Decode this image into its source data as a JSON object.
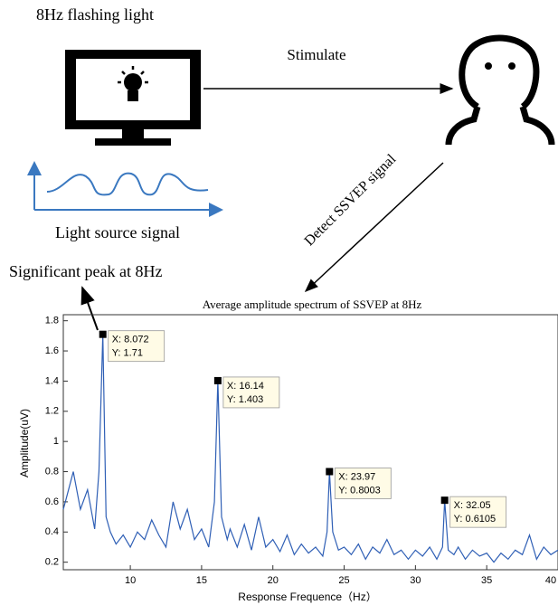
{
  "diagram": {
    "source_label": "8Hz flashing light",
    "stimulate_label": "Stimulate",
    "signal_label": "Light source signal",
    "detect_label": "Detect SSVEP signal",
    "peak_note": "Significant peak at 8Hz"
  },
  "chart_data": {
    "type": "line",
    "title": "Average amplitude spectrum of SSVEP at 8Hz",
    "xlabel": "Response Frequence（Hz）",
    "ylabel": "Amplitude(uV)",
    "xlim": [
      5.3,
      40
    ],
    "ylim": [
      0.15,
      1.84
    ],
    "xticks": [
      10,
      15,
      20,
      25,
      30,
      35,
      40
    ],
    "yticks": [
      0.2,
      0.4,
      0.6,
      0.8,
      1,
      1.2,
      1.4,
      1.6,
      1.8
    ],
    "series": [
      {
        "color": "#2f5fb5",
        "x": [
          5.3,
          5.5,
          6,
          6.5,
          7,
          7.5,
          7.8,
          8.072,
          8.3,
          8.6,
          9,
          9.5,
          10,
          10.5,
          11,
          11.5,
          12,
          12.5,
          13,
          13.5,
          14,
          14.5,
          15,
          15.5,
          15.9,
          16.14,
          16.4,
          16.8,
          17,
          17.5,
          18,
          18.5,
          19,
          19.5,
          20,
          20.5,
          21,
          21.5,
          22,
          22.5,
          23,
          23.5,
          23.8,
          23.97,
          24.2,
          24.6,
          25,
          25.5,
          26,
          26.5,
          27,
          27.5,
          28,
          28.5,
          29,
          29.5,
          30,
          30.5,
          31,
          31.5,
          31.9,
          32.05,
          32.3,
          32.7,
          33,
          33.5,
          34,
          34.5,
          35,
          35.5,
          36,
          36.5,
          37,
          37.5,
          38,
          38.5,
          39,
          39.5,
          40
        ],
        "values": [
          0.55,
          0.62,
          0.8,
          0.55,
          0.68,
          0.42,
          0.8,
          1.71,
          0.5,
          0.4,
          0.32,
          0.38,
          0.3,
          0.4,
          0.35,
          0.48,
          0.38,
          0.3,
          0.6,
          0.42,
          0.55,
          0.35,
          0.42,
          0.3,
          0.6,
          1.403,
          0.5,
          0.35,
          0.42,
          0.3,
          0.45,
          0.28,
          0.5,
          0.3,
          0.35,
          0.27,
          0.38,
          0.25,
          0.32,
          0.26,
          0.3,
          0.24,
          0.4,
          0.8003,
          0.4,
          0.28,
          0.3,
          0.25,
          0.32,
          0.22,
          0.3,
          0.26,
          0.35,
          0.25,
          0.28,
          0.22,
          0.28,
          0.24,
          0.3,
          0.22,
          0.3,
          0.6105,
          0.28,
          0.25,
          0.3,
          0.22,
          0.28,
          0.24,
          0.26,
          0.2,
          0.26,
          0.22,
          0.28,
          0.25,
          0.38,
          0.22,
          0.3,
          0.25,
          0.28
        ]
      }
    ],
    "datatips": [
      {
        "x": 8.072,
        "y": 1.71,
        "x_label": "X: 8.072",
        "y_label": "Y: 1.71"
      },
      {
        "x": 16.14,
        "y": 1.403,
        "x_label": "X: 16.14",
        "y_label": "Y: 1.403"
      },
      {
        "x": 23.97,
        "y": 0.8003,
        "x_label": "X: 23.97",
        "y_label": "Y: 0.8003"
      },
      {
        "x": 32.05,
        "y": 0.6105,
        "x_label": "X: 32.05",
        "y_label": "Y: 0.6105"
      }
    ]
  }
}
